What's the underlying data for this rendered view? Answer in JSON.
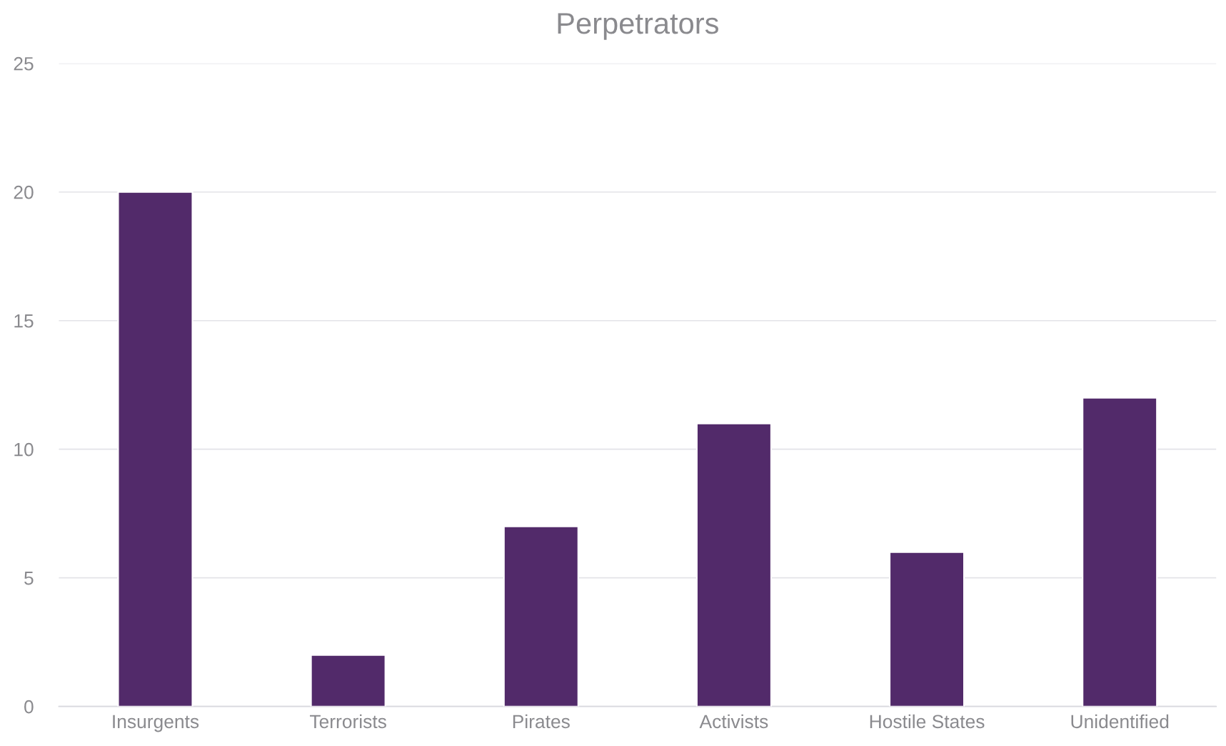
{
  "chart_data": {
    "type": "bar",
    "title": "Perpetrators",
    "categories": [
      "Insurgents",
      "Terrorists",
      "Pirates",
      "Activists",
      "Hostile States",
      "Unidentified"
    ],
    "values": [
      20,
      2,
      7,
      11,
      6,
      12
    ],
    "color": "#522a6a",
    "ylim": [
      0,
      25
    ],
    "yticks": [
      0,
      5,
      10,
      15,
      20,
      25
    ],
    "grid": "y",
    "legend": false
  }
}
